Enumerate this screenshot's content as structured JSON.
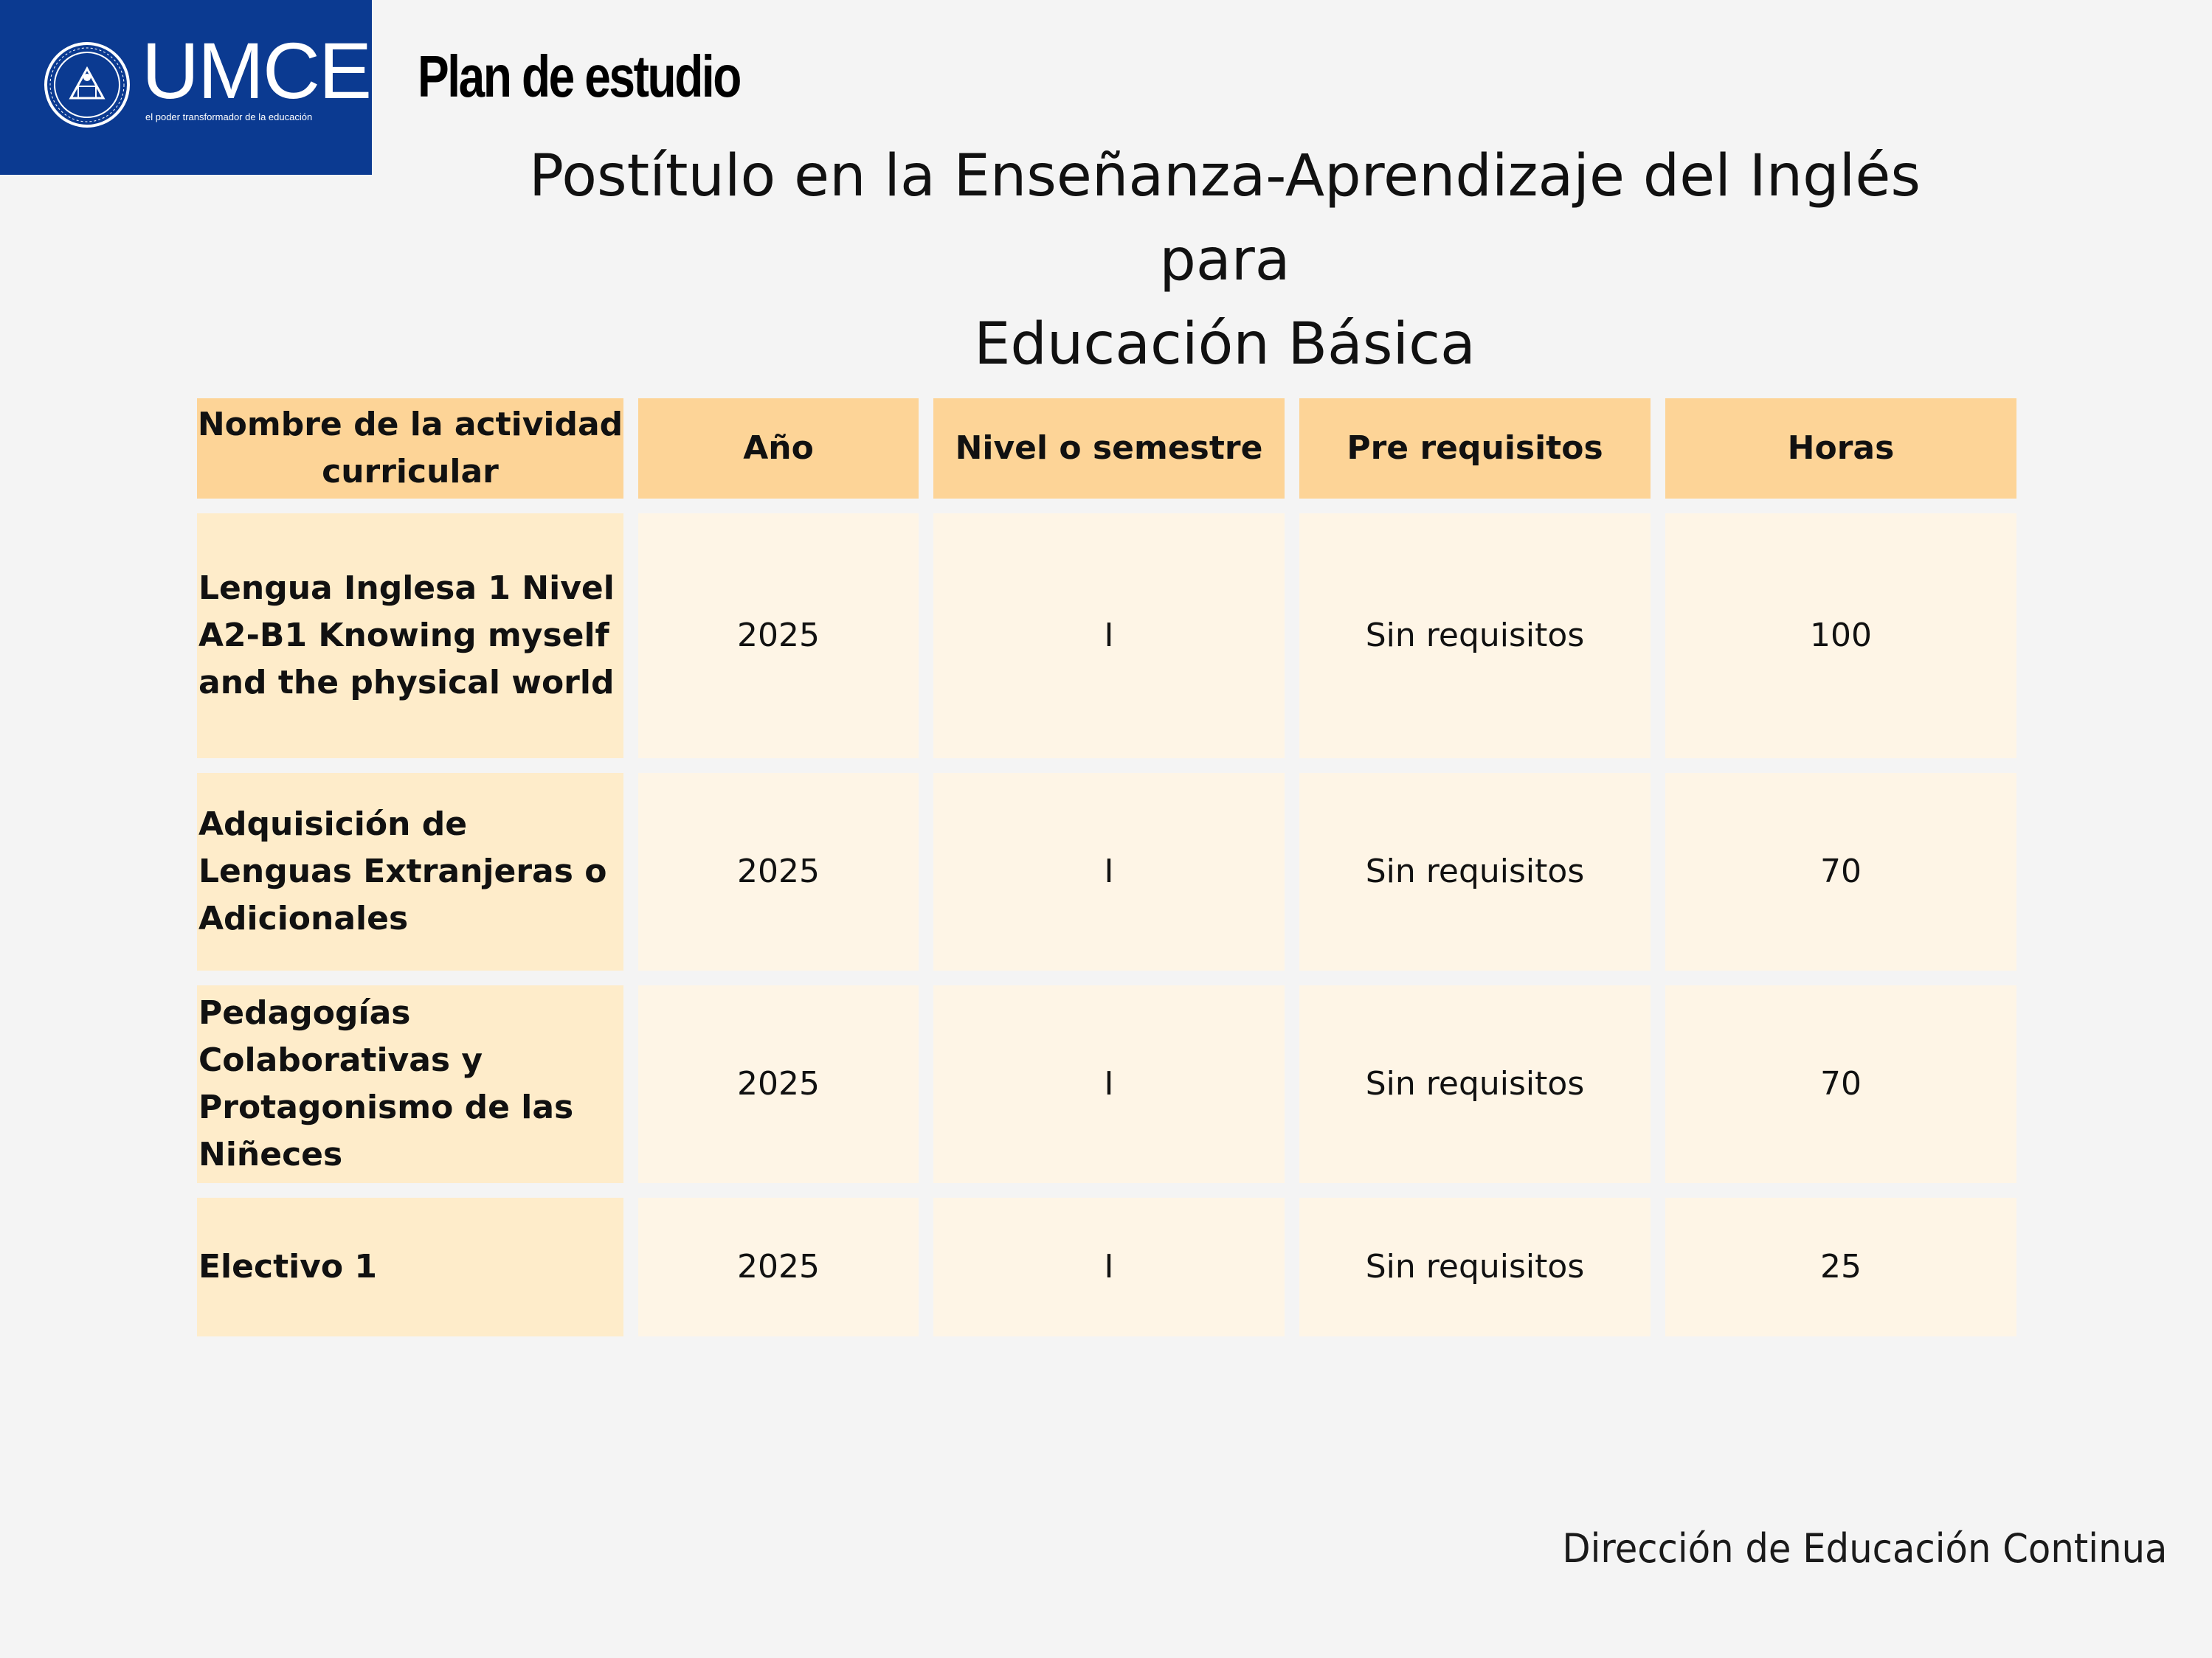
{
  "logo": {
    "word": "UMCE",
    "tagline": "el poder transformador de la educación"
  },
  "header": {
    "title": "Plan de estudio",
    "subtitle_line1": "Postítulo en la Enseñanza-Aprendizaje del Inglés para",
    "subtitle_line2": "Educación Básica"
  },
  "table": {
    "columns": [
      "Nombre de la actividad curricular",
      "Año",
      "Nivel o semestre",
      "Pre requisitos",
      "Horas"
    ],
    "rows": [
      {
        "name": "Lengua Inglesa 1 Nivel A2-B1 Knowing myself and the physical world",
        "year": "2025",
        "level": "I",
        "prereq": "Sin requisitos",
        "hours": "100"
      },
      {
        "name": "Adquisición de Lenguas Extranjeras o Adicionales",
        "year": "2025",
        "level": "I",
        "prereq": "Sin requisitos",
        "hours": "70"
      },
      {
        "name": "Pedagogías Colaborativas y Protagonismo de las Niñeces",
        "year": "2025",
        "level": "I",
        "prereq": "Sin requisitos",
        "hours": "70"
      },
      {
        "name": "Electivo 1",
        "year": "2025",
        "level": "I",
        "prereq": "Sin requisitos",
        "hours": "25"
      }
    ]
  },
  "footer": {
    "text": "Dirección de Educación Continua"
  },
  "colors": {
    "logo_bg": "#0b3a91",
    "header_cell": "#fdd497",
    "name_cell": "#feecca",
    "data_cell": "#fef5e6",
    "page_bg": "#f4f4f4"
  }
}
